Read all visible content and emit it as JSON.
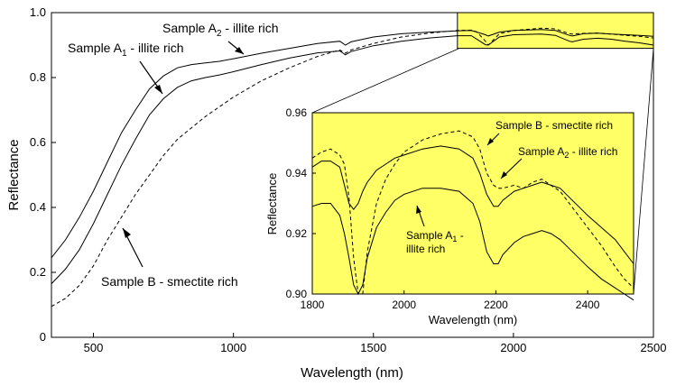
{
  "chart_data": [
    {
      "type": "line",
      "xlabel": "Wavelength (nm)",
      "ylabel": "Reflectance",
      "xlim": [
        350,
        2500
      ],
      "ylim": [
        0,
        1.0
      ],
      "x_ticks": [
        500,
        1000,
        1500,
        2000,
        2500
      ],
      "y_ticks": [
        0,
        0.2,
        0.4,
        0.6,
        0.8,
        1.0
      ],
      "x_tick_labels": [
        "500",
        "1000",
        "1500",
        "2000",
        "2500"
      ],
      "y_tick_labels": [
        "0",
        "0.2",
        "0.4",
        "0.6",
        "0.8",
        "1.0"
      ],
      "series": [
        {
          "name": "Sample A2 - illite rich",
          "style": "solid",
          "x": [
            350,
            400,
            450,
            500,
            550,
            600,
            650,
            700,
            750,
            800,
            850,
            900,
            950,
            1000,
            1100,
            1200,
            1300,
            1380,
            1400,
            1420,
            1500,
            1600,
            1700,
            1800,
            1850,
            1900,
            1910,
            1950,
            2000,
            2100,
            2150,
            2200,
            2210,
            2250,
            2300,
            2350,
            2400,
            2450,
            2500
          ],
          "y": [
            0.245,
            0.3,
            0.37,
            0.45,
            0.54,
            0.63,
            0.7,
            0.765,
            0.805,
            0.83,
            0.84,
            0.845,
            0.85,
            0.858,
            0.875,
            0.89,
            0.905,
            0.912,
            0.9,
            0.91,
            0.925,
            0.935,
            0.94,
            0.944,
            0.945,
            0.932,
            0.928,
            0.94,
            0.945,
            0.948,
            0.945,
            0.93,
            0.928,
            0.935,
            0.937,
            0.934,
            0.932,
            0.93,
            0.927
          ]
        },
        {
          "name": "Sample A1 - illite rich",
          "style": "solid",
          "x": [
            350,
            400,
            450,
            500,
            550,
            600,
            650,
            700,
            750,
            800,
            850,
            900,
            950,
            1000,
            1100,
            1200,
            1300,
            1380,
            1400,
            1420,
            1500,
            1600,
            1700,
            1800,
            1850,
            1900,
            1910,
            1950,
            2000,
            2100,
            2150,
            2200,
            2210,
            2250,
            2300,
            2350,
            2400,
            2450,
            2500
          ],
          "y": [
            0.165,
            0.21,
            0.27,
            0.35,
            0.44,
            0.53,
            0.61,
            0.685,
            0.735,
            0.77,
            0.79,
            0.8,
            0.808,
            0.818,
            0.84,
            0.86,
            0.876,
            0.882,
            0.87,
            0.88,
            0.898,
            0.912,
            0.922,
            0.929,
            0.929,
            0.901,
            0.9,
            0.925,
            0.932,
            0.934,
            0.93,
            0.912,
            0.91,
            0.918,
            0.921,
            0.918,
            0.912,
            0.907,
            0.9
          ]
        },
        {
          "name": "Sample B - smectite rich",
          "style": "dashed",
          "x": [
            350,
            400,
            450,
            500,
            550,
            600,
            650,
            700,
            750,
            800,
            900,
            1000,
            1100,
            1200,
            1300,
            1380,
            1400,
            1420,
            1500,
            1600,
            1700,
            1800,
            1850,
            1870,
            1900,
            1910,
            1950,
            2000,
            2100,
            2150,
            2200,
            2210,
            2250,
            2300,
            2350,
            2400,
            2450,
            2500
          ],
          "y": [
            0.095,
            0.12,
            0.16,
            0.22,
            0.3,
            0.37,
            0.44,
            0.5,
            0.56,
            0.61,
            0.68,
            0.74,
            0.79,
            0.83,
            0.865,
            0.885,
            0.875,
            0.885,
            0.905,
            0.925,
            0.937,
            0.945,
            0.946,
            0.94,
            0.912,
            0.9,
            0.935,
            0.945,
            0.952,
            0.95,
            0.935,
            0.934,
            0.936,
            0.937,
            0.934,
            0.93,
            0.927,
            0.922
          ]
        }
      ],
      "annotations": {
        "a2_label_main": "Sample A",
        "a2_label_sub": "2",
        "a2_label_rest": " - illite rich",
        "a1_label_main": "Sample A",
        "a1_label_sub": "1",
        "a1_label_rest": " - illite rich",
        "b_label": "Sample B - smectite rich"
      },
      "grid": false,
      "inset_region": {
        "x": [
          1800,
          2500
        ],
        "y": [
          0.9,
          0.96
        ],
        "color": "#ffff66"
      }
    },
    {
      "type": "line",
      "xlabel": "Wavelength (nm)",
      "ylabel": "Reflectance",
      "xlim": [
        1800,
        2500
      ],
      "ylim": [
        0.9,
        0.96
      ],
      "x_ticks": [
        1800,
        2000,
        2200,
        2400
      ],
      "y_ticks": [
        0.9,
        0.92,
        0.94,
        0.96
      ],
      "x_tick_labels": [
        "1800",
        "2000",
        "2200",
        "2400"
      ],
      "y_tick_labels": [
        "0.90",
        "0.92",
        "0.94",
        "0.96"
      ],
      "background": "#ffff66",
      "series": [
        {
          "name": "Sample B - smectite rich",
          "style": "dashed",
          "x": [
            1800,
            1820,
            1840,
            1860,
            1870,
            1880,
            1890,
            1900,
            1910,
            1920,
            1940,
            1960,
            1980,
            2000,
            2040,
            2080,
            2120,
            2150,
            2165,
            2180,
            2195,
            2205,
            2215,
            2240,
            2260,
            2280,
            2300,
            2320,
            2340,
            2360,
            2380,
            2400,
            2430,
            2460,
            2480,
            2500
          ],
          "y": [
            0.945,
            0.947,
            0.948,
            0.946,
            0.943,
            0.932,
            0.912,
            0.9,
            0.9,
            0.914,
            0.93,
            0.938,
            0.943,
            0.947,
            0.951,
            0.953,
            0.954,
            0.952,
            0.948,
            0.94,
            0.936,
            0.935,
            0.935,
            0.936,
            0.935,
            0.937,
            0.938,
            0.936,
            0.934,
            0.93,
            0.926,
            0.922,
            0.916,
            0.909,
            0.905,
            0.902
          ]
        },
        {
          "name": "Sample A2 - illite rich",
          "style": "solid",
          "x": [
            1800,
            1820,
            1840,
            1860,
            1870,
            1880,
            1890,
            1900,
            1910,
            1920,
            1940,
            1960,
            1980,
            2000,
            2040,
            2080,
            2120,
            2150,
            2165,
            2180,
            2195,
            2205,
            2215,
            2240,
            2260,
            2280,
            2300,
            2320,
            2340,
            2360,
            2380,
            2400,
            2430,
            2460,
            2480,
            2500
          ],
          "y": [
            0.942,
            0.944,
            0.944,
            0.942,
            0.936,
            0.93,
            0.928,
            0.93,
            0.934,
            0.937,
            0.941,
            0.943,
            0.945,
            0.946,
            0.948,
            0.949,
            0.948,
            0.945,
            0.94,
            0.933,
            0.929,
            0.929,
            0.931,
            0.934,
            0.935,
            0.936,
            0.937,
            0.936,
            0.935,
            0.932,
            0.929,
            0.926,
            0.922,
            0.918,
            0.914,
            0.91
          ]
        },
        {
          "name": "Sample A1 - illite rich",
          "style": "solid",
          "x": [
            1800,
            1820,
            1840,
            1860,
            1870,
            1880,
            1890,
            1900,
            1910,
            1920,
            1940,
            1960,
            1980,
            2000,
            2040,
            2080,
            2120,
            2150,
            2165,
            2180,
            2195,
            2205,
            2215,
            2240,
            2260,
            2280,
            2300,
            2320,
            2340,
            2360,
            2380,
            2400,
            2430,
            2460,
            2480,
            2500
          ],
          "y": [
            0.929,
            0.93,
            0.93,
            0.926,
            0.92,
            0.912,
            0.903,
            0.9,
            0.903,
            0.912,
            0.922,
            0.927,
            0.931,
            0.933,
            0.935,
            0.935,
            0.934,
            0.93,
            0.924,
            0.914,
            0.91,
            0.91,
            0.913,
            0.917,
            0.919,
            0.92,
            0.921,
            0.92,
            0.918,
            0.915,
            0.912,
            0.909,
            0.905,
            0.902,
            0.9,
            0.898
          ]
        }
      ],
      "annotations": {
        "b_label": "Sample B - smectite rich",
        "a2_label_main": "Sample A",
        "a2_label_sub": "2",
        "a2_label_rest": " - illite rich",
        "a1_label_main": "Sample A",
        "a1_label_sub": "1",
        "a1_label_rest": " -",
        "a1_label_line2": "illite rich"
      },
      "grid": false
    }
  ]
}
